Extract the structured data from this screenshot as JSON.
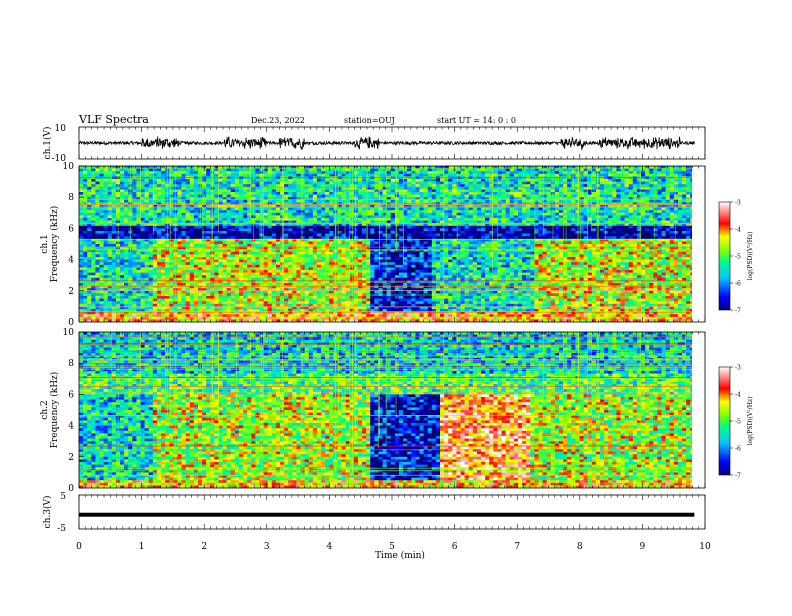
{
  "header": {
    "title": "VLF Spectra",
    "date": "Dec.23, 2022",
    "station": "station=OUJ",
    "start": "start  UT =   14: 0  : 0"
  },
  "chart_data": [
    {
      "type": "line",
      "name": "ch1-waveform",
      "ylabel": "ch.1(V)",
      "ylim": [
        -10,
        10
      ],
      "yticks": [
        "10",
        "-10"
      ],
      "x_range_min": [
        0,
        9.83
      ],
      "bursts_min": [
        [
          1.0,
          1.6
        ],
        [
          2.3,
          3.0
        ],
        [
          3.2,
          3.6
        ],
        [
          4.4,
          4.8
        ],
        [
          7.7,
          8.1
        ],
        [
          8.3,
          8.6
        ],
        [
          8.6,
          9.6
        ]
      ],
      "envelope_V": [
        1.0,
        4.5
      ]
    },
    {
      "type": "heatmap",
      "name": "ch1-spectrogram",
      "ylabel": "ch.1\nFrequency (kHz)",
      "ylim": [
        0,
        10
      ],
      "yticks": [
        "0",
        "2",
        "4",
        "6",
        "8",
        "10"
      ],
      "x_range_min": [
        0,
        9.83
      ],
      "segments": [
        {
          "t": [
            0,
            1.15
          ],
          "state": "mixed"
        },
        {
          "t": [
            1.15,
            4.65
          ],
          "state": "active"
        },
        {
          "t": [
            4.65,
            5.65
          ],
          "state": "quiet"
        },
        {
          "t": [
            5.65,
            7.3
          ],
          "state": "mixed"
        },
        {
          "t": [
            7.3,
            9.83
          ],
          "state": "active"
        }
      ],
      "colorbar": {
        "label": "log(PSD)(V²/Hz)",
        "range": [
          -7,
          -3
        ],
        "ticks": [
          "-3",
          "-4",
          "-5",
          "-6",
          "-7"
        ]
      }
    },
    {
      "type": "heatmap",
      "name": "ch2-spectrogram",
      "ylabel": "ch.2\nFrequency (kHz)",
      "ylim": [
        0,
        10
      ],
      "yticks": [
        "0",
        "2",
        "4",
        "6",
        "8",
        "10"
      ],
      "x_range_min": [
        0,
        9.83
      ],
      "segments": [
        {
          "t": [
            0,
            1.15
          ],
          "state": "mixed"
        },
        {
          "t": [
            1.15,
            4.65
          ],
          "state": "active"
        },
        {
          "t": [
            4.65,
            5.75
          ],
          "state": "quiet"
        },
        {
          "t": [
            5.75,
            7.2
          ],
          "state": "bright"
        },
        {
          "t": [
            7.2,
            9.83
          ],
          "state": "active"
        }
      ],
      "colorbar": {
        "label": "log(PSD)(V²/Hz)",
        "range": [
          -7,
          -3
        ],
        "ticks": [
          "-3",
          "-4",
          "-5",
          "-6",
          "-7"
        ]
      }
    },
    {
      "type": "line",
      "name": "ch3-waveform",
      "ylabel": "ch.3(V)",
      "ylim": [
        -5,
        5
      ],
      "yticks": [
        "5",
        "-5"
      ],
      "x_range_min": [
        0,
        9.83
      ],
      "constant_V": -0.8,
      "xlabel": "Time (min)",
      "xlim": [
        0,
        10
      ],
      "xticks": [
        "0",
        "1",
        "2",
        "3",
        "4",
        "5",
        "6",
        "7",
        "8",
        "9",
        "10"
      ]
    }
  ],
  "colors": {
    "frame": "#000000",
    "grid": "#c8c820"
  }
}
